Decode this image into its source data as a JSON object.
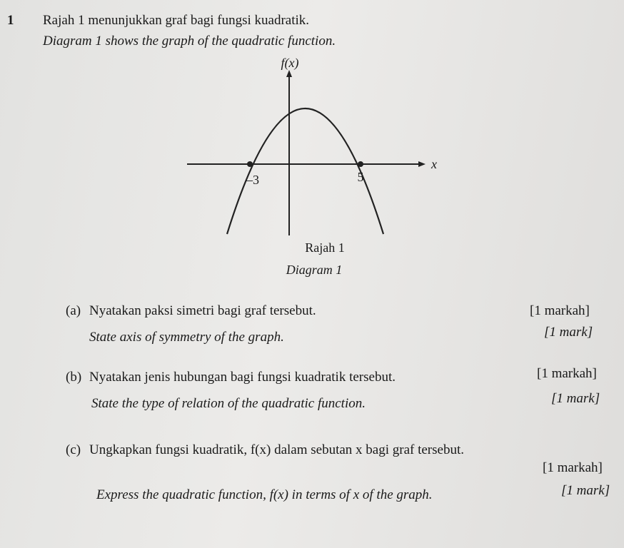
{
  "question": {
    "number": "1",
    "intro_ms": "Rajah 1 menunjukkan graf bagi fungsi kuadratik.",
    "intro_en": "Diagram 1 shows the graph of the quadratic function."
  },
  "diagram": {
    "y_label": "f(x)",
    "x_label": "x",
    "root_left": "–3",
    "root_right": "5",
    "caption_ms": "Rajah 1",
    "caption_en": "Diagram 1"
  },
  "parts": [
    {
      "label": "(a)",
      "text_ms": "Nyatakan paksi simetri bagi graf tersebut.",
      "marks_ms": "[1 markah]",
      "text_en": "State axis of symmetry of the graph.",
      "marks_en": "[1 mark]"
    },
    {
      "label": "(b)",
      "text_ms": "Nyatakan jenis hubungan bagi fungsi kuadratik tersebut.",
      "marks_ms": "[1 markah]",
      "text_en": "State the type of relation of the quadratic function.",
      "marks_en": "[1 mark]"
    },
    {
      "label": "(c)",
      "text_ms": "Ungkapkan fungsi kuadratik, f(x) dalam sebutan x bagi graf tersebut.",
      "marks_ms": "[1 markah]",
      "text_en": "Express the quadratic function, f(x) in terms of x of the graph.",
      "marks_en": "[1 mark]"
    }
  ]
}
